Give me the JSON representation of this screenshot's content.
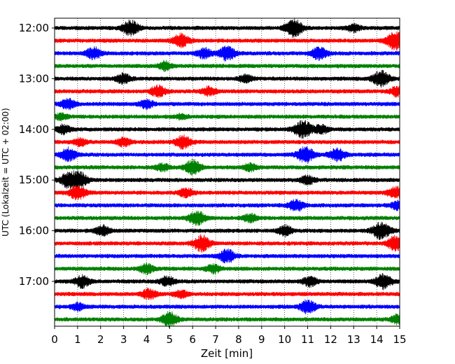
{
  "chart_data": {
    "type": "line",
    "title": "",
    "xlabel": "Zeit  [min]",
    "ylabel": "UTC (Lokalzeit = UTC + 02:00)",
    "xlim": [
      0,
      15
    ],
    "x_ticks": [
      "0",
      "1",
      "2",
      "3",
      "4",
      "5",
      "6",
      "7",
      "8",
      "9",
      "10",
      "11",
      "12",
      "13",
      "14",
      "15"
    ],
    "y_ticks": [
      "12:00",
      "13:00",
      "14:00",
      "15:00",
      "16:00",
      "17:00"
    ],
    "grid": "vertical dotted at each minute",
    "trace_colors": [
      "#000000",
      "#ff0000",
      "#0000ff",
      "#008000"
    ],
    "traces_per_hour": 4,
    "trace_start_times": [
      "12:00",
      "12:15",
      "12:30",
      "12:45",
      "13:00",
      "13:15",
      "13:30",
      "13:45",
      "14:00",
      "14:15",
      "14:30",
      "14:45",
      "15:00",
      "15:15",
      "15:30",
      "15:45",
      "16:00",
      "16:15",
      "16:30",
      "16:45",
      "17:00",
      "17:15",
      "17:30",
      "17:45"
    ],
    "trace_events": [
      [
        [
          3.3,
          1.0
        ],
        [
          10.4,
          1.2
        ],
        [
          13.0,
          0.5
        ]
      ],
      [
        [
          5.5,
          0.9
        ],
        [
          14.8,
          1.3
        ]
      ],
      [
        [
          1.7,
          0.8
        ],
        [
          6.5,
          0.7
        ],
        [
          7.5,
          1.0
        ],
        [
          11.5,
          0.9
        ]
      ],
      [
        [
          4.8,
          0.6
        ]
      ],
      [
        [
          3.0,
          0.7
        ],
        [
          8.3,
          0.5
        ],
        [
          14.2,
          1.1
        ]
      ],
      [
        [
          4.5,
          0.8
        ],
        [
          6.7,
          0.6
        ],
        [
          14.9,
          0.7
        ]
      ],
      [
        [
          0.6,
          0.7
        ],
        [
          4.0,
          0.6
        ]
      ],
      [
        [
          0.3,
          0.4
        ],
        [
          5.5,
          0.3
        ]
      ],
      [
        [
          0.4,
          0.6
        ],
        [
          10.8,
          1.2
        ],
        [
          11.6,
          0.6
        ]
      ],
      [
        [
          1.1,
          0.5
        ],
        [
          3.0,
          0.6
        ],
        [
          5.6,
          0.9
        ]
      ],
      [
        [
          0.6,
          0.9
        ],
        [
          10.9,
          1.1
        ],
        [
          12.3,
          0.9
        ]
      ],
      [
        [
          4.7,
          0.5
        ],
        [
          6.0,
          1.0
        ],
        [
          8.5,
          0.5
        ]
      ],
      [
        [
          0.6,
          1.0
        ],
        [
          1.1,
          1.0
        ],
        [
          11.0,
          0.6
        ]
      ],
      [
        [
          1.0,
          1.0
        ],
        [
          5.7,
          0.6
        ],
        [
          14.8,
          0.8
        ]
      ],
      [
        [
          10.5,
          0.8
        ],
        [
          14.9,
          0.6
        ]
      ],
      [
        [
          6.2,
          1.0
        ],
        [
          8.5,
          0.6
        ]
      ],
      [
        [
          2.1,
          0.7
        ],
        [
          10.0,
          0.7
        ],
        [
          14.2,
          1.2
        ]
      ],
      [
        [
          6.4,
          1.1
        ],
        [
          14.8,
          1.0
        ]
      ],
      [
        [
          7.5,
          0.9
        ]
      ],
      [
        [
          4.0,
          0.7
        ],
        [
          6.9,
          0.6
        ]
      ],
      [
        [
          1.2,
          0.8
        ],
        [
          4.9,
          0.7
        ],
        [
          11.1,
          0.7
        ],
        [
          14.3,
          1.0
        ]
      ],
      [
        [
          4.1,
          0.7
        ],
        [
          5.5,
          0.5
        ]
      ],
      [
        [
          1.0,
          0.5
        ],
        [
          11.0,
          0.9
        ]
      ],
      [
        [
          5.0,
          1.0
        ],
        [
          14.9,
          0.6
        ]
      ]
    ]
  }
}
